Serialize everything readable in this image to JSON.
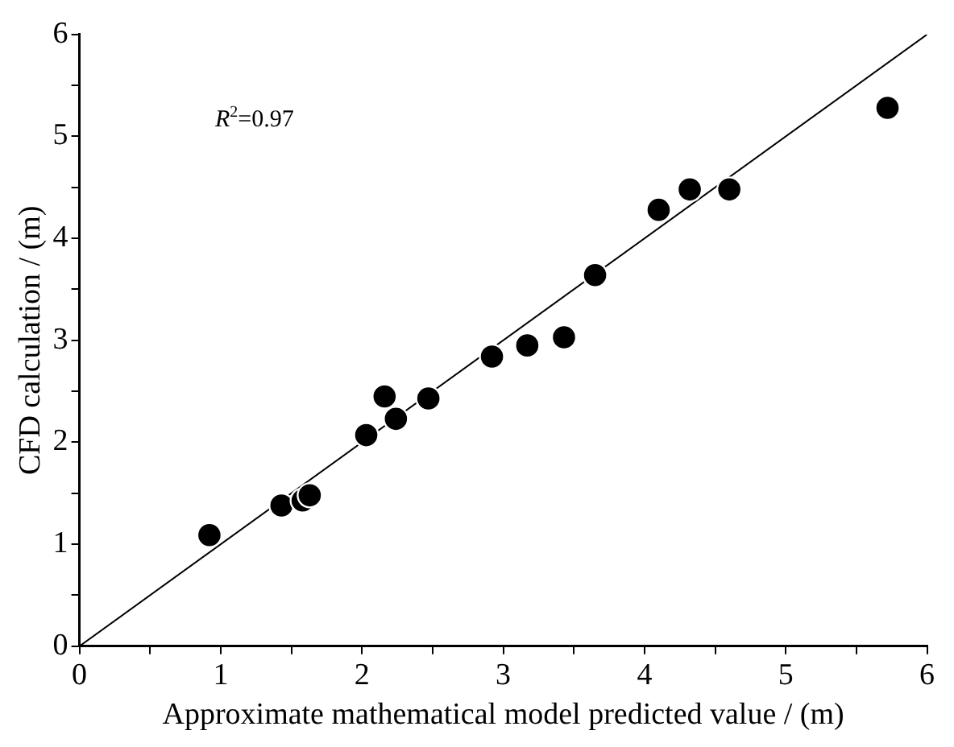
{
  "chart_data": {
    "type": "scatter",
    "xlabel": "Approximate mathematical model predicted value / (m)",
    "ylabel": "CFD calculation / (m)",
    "annotations": [
      "R$^{2}$=0.97"
    ],
    "xlim": [
      0,
      6
    ],
    "ylim": [
      0,
      6
    ],
    "xticks": [
      0,
      {
        "value": 0.5,
        "label": null
      },
      1,
      {
        "value": 1.5,
        "label": null
      },
      2,
      {
        "value": 2.5,
        "label": null
      },
      3,
      {
        "value": 3.5,
        "label": null
      },
      4,
      {
        "value": 4.5,
        "label": null
      },
      5,
      {
        "value": 5.5,
        "label": null
      },
      6
    ],
    "yticks": [
      0,
      {
        "value": 0.5,
        "label": null
      },
      1,
      {
        "value": 1.5,
        "label": null
      },
      2,
      {
        "value": 2.5,
        "label": null
      },
      3,
      {
        "value": 3.5,
        "label": null
      },
      4,
      {
        "value": 4.5,
        "label": null
      },
      5,
      {
        "value": 5.5,
        "label": null
      },
      6
    ],
    "grid": false,
    "legend": false,
    "series": [
      {
        "type": "scatter",
        "color": "#000000",
        "marker": "circle",
        "x": [
          0.92,
          1.43,
          1.58,
          1.63,
          2.03,
          2.16,
          2.24,
          2.47,
          2.92,
          3.17,
          3.43,
          3.65,
          4.1,
          4.32,
          4.6,
          5.72
        ],
        "values": [
          1.09,
          1.38,
          1.43,
          1.48,
          2.07,
          2.45,
          2.23,
          2.43,
          2.84,
          2.95,
          3.03,
          3.64,
          4.28,
          4.48,
          4.48,
          5.28
        ]
      },
      {
        "type": "line",
        "color": "#000000",
        "line_style": "solid",
        "marker": "none",
        "x": [
          0,
          6
        ],
        "values": [
          0,
          6
        ]
      }
    ]
  }
}
